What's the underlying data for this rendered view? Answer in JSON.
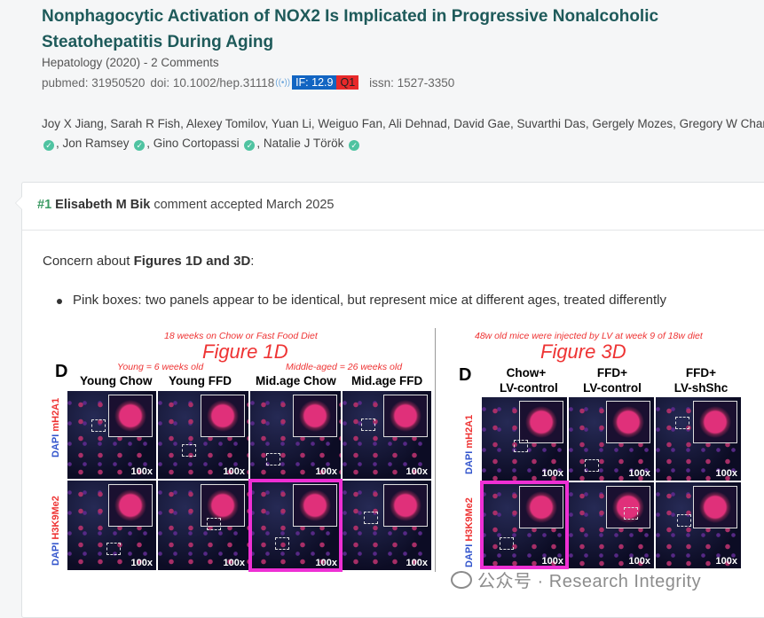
{
  "article": {
    "title": "Nonphagocytic Activation of NOX2 Is Implicated in Progressive Nonalcoholic Steatohepatitis During Aging",
    "journal": "Hepatology (2020) - 2 Comments",
    "pubmed": "pubmed: 31950520",
    "doi": "doi: 10.1002/hep.31118",
    "if_badge": "IF: 12.9",
    "quartile": "Q1",
    "issn": "issn: 1527-3350",
    "authors_line1": "Joy X Jiang, Sarah R Fish, Alexey Tomilov, Yuan Li, Weiguo Fan, Ali Dehnad, David Gae, Suvarthi Das, Gergely Mozes, Gregory W Charville",
    "author_jon": ", Jon Ramsey",
    "author_gino": ", Gino Cortopassi",
    "author_natalie": ", Natalie J Török"
  },
  "comment": {
    "number": "#1",
    "author": "Elisabeth M Bik",
    "status": " comment accepted March 2025",
    "concern_prefix": "Concern about ",
    "concern_bold": "Figures 1D and 3D",
    "concern_suffix": ":",
    "bullet": "Pink boxes: two panels appear to be identical, but represent mice at different ages, treated differently"
  },
  "figure1": {
    "subtitle": "18 weeks on Chow or Fast Food Diet",
    "title": "Figure 1D",
    "young_note": "Young = 6 weeks old",
    "middle_note": "Middle-aged = 26 weeks old",
    "panel_letter": "D",
    "columns": [
      "Young Chow",
      "Young FFD",
      "Mid.age Chow",
      "Mid.age FFD"
    ],
    "row1_dapi": "DAPI",
    "row1_marker": "mH2A1",
    "row2_dapi": "DAPI",
    "row2_marker": "H3K9Me2",
    "magnification": "100x"
  },
  "figure3": {
    "subtitle": "48w old mice were injected by LV at week 9 of 18w diet",
    "title": "Figure 3D",
    "panel_letter": "D",
    "col1_a": "Chow+",
    "col1_b": "LV-control",
    "col2_a": "FFD+",
    "col2_b": "LV-control",
    "col3_a": "FFD+",
    "col3_b": "LV-shShc",
    "row1_dapi": "DAPI",
    "row1_marker": "mH2A1",
    "row2_dapi": "DAPI",
    "row2_marker": "H3K9Me2",
    "magnification": "100x"
  },
  "watermark": "公众号 · Research Integrity",
  "colors": {
    "title": "#1e5a5a",
    "if_badge": "#1265c2",
    "quartile": "#e8292a",
    "pink_box": "#ee2fd4",
    "verified": "#4fc3a1"
  }
}
